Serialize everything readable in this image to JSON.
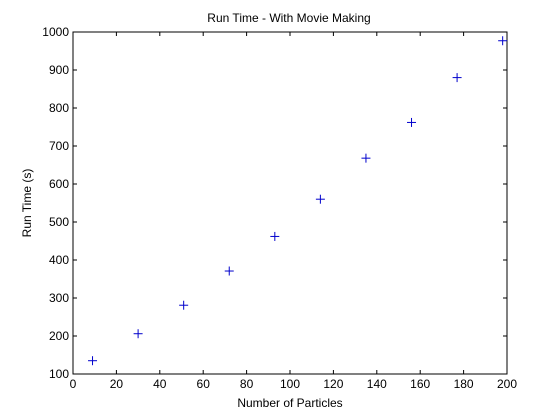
{
  "chart_data": {
    "type": "scatter",
    "title": "Run Time - With Movie Making",
    "xlabel": "Number of Particles",
    "ylabel": "Run Time (s)",
    "xlim": [
      0,
      200
    ],
    "ylim": [
      100,
      1000
    ],
    "x_ticks": [
      0,
      20,
      40,
      60,
      80,
      100,
      120,
      140,
      160,
      180,
      200
    ],
    "y_ticks": [
      100,
      200,
      300,
      400,
      500,
      600,
      700,
      800,
      900,
      1000
    ],
    "grid": false,
    "marker": "+",
    "marker_color": "#0000cc",
    "series": [
      {
        "x": [
          9,
          30,
          51,
          72,
          93,
          114,
          135,
          156,
          177,
          198
        ],
        "y": [
          135,
          206,
          281,
          371,
          462,
          560,
          668,
          762,
          880,
          977
        ]
      }
    ]
  }
}
